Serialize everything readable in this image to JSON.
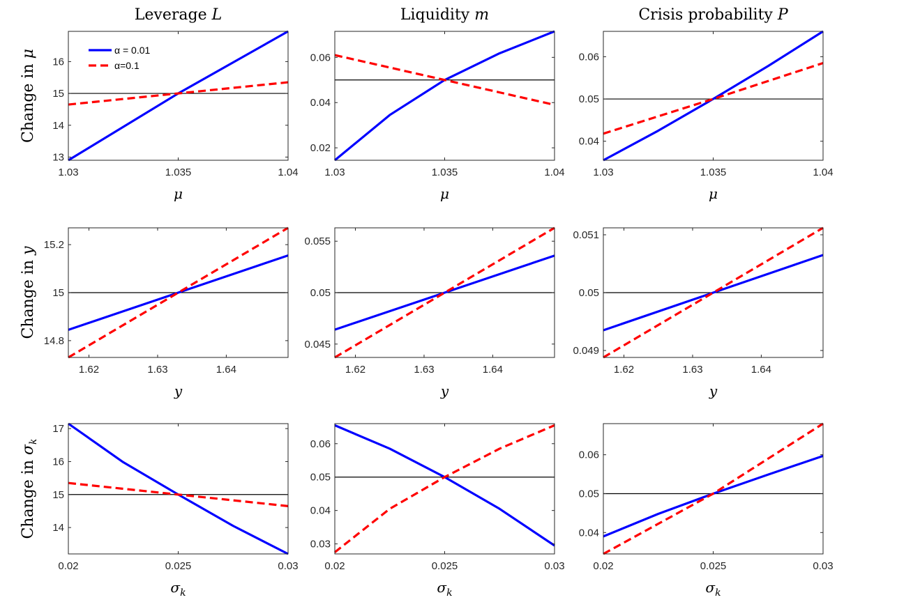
{
  "colors": {
    "alpha_001": "#0000ff",
    "alpha_01": "#ff0000",
    "baseline": "#000000",
    "axis": "#262626"
  },
  "chart_data": [
    {
      "type": "line",
      "row": 0,
      "col": 0,
      "title": "Leverage L",
      "ylabel": "Change in μ",
      "xlabel": "μ",
      "xlim": [
        1.03,
        1.04
      ],
      "ylim": [
        12.9,
        16.95
      ],
      "xticks": [
        1.03,
        1.035,
        1.04
      ],
      "xtick_labels": [
        "1.03",
        "1.035",
        "1.04"
      ],
      "yticks": [
        13,
        14,
        15,
        16
      ],
      "ytick_labels": [
        "13",
        "14",
        "15",
        "16"
      ],
      "baseline": 15,
      "legend": {
        "placement": "top-left",
        "entries": [
          "α = 0.01",
          "α=0.1"
        ]
      },
      "series": [
        {
          "name": "α = 0.01",
          "style": "solid",
          "x": [
            1.03,
            1.035,
            1.04
          ],
          "y": [
            12.9,
            15.0,
            16.95
          ]
        },
        {
          "name": "α=0.1",
          "style": "dashed",
          "x": [
            1.03,
            1.035,
            1.04
          ],
          "y": [
            14.65,
            15.0,
            15.35
          ]
        }
      ]
    },
    {
      "type": "line",
      "row": 0,
      "col": 1,
      "title": "Liquidity m",
      "ylabel": "",
      "xlabel": "μ",
      "xlim": [
        1.03,
        1.04
      ],
      "ylim": [
        0.0145,
        0.0715
      ],
      "xticks": [
        1.03,
        1.035,
        1.04
      ],
      "xtick_labels": [
        "1.03",
        "1.035",
        "1.04"
      ],
      "yticks": [
        0.02,
        0.04,
        0.06
      ],
      "ytick_labels": [
        "0.02",
        "0.04",
        "0.06"
      ],
      "baseline": 0.05,
      "series": [
        {
          "name": "α = 0.01",
          "style": "solid",
          "x": [
            1.03,
            1.0325,
            1.035,
            1.0375,
            1.04
          ],
          "y": [
            0.0145,
            0.0345,
            0.05,
            0.0618,
            0.0715
          ]
        },
        {
          "name": "α=0.1",
          "style": "dashed",
          "x": [
            1.03,
            1.035,
            1.04
          ],
          "y": [
            0.061,
            0.05,
            0.039
          ]
        }
      ]
    },
    {
      "type": "line",
      "row": 0,
      "col": 2,
      "title": "Crisis probability P",
      "ylabel": "",
      "xlabel": "μ",
      "xlim": [
        1.03,
        1.04
      ],
      "ylim": [
        0.0355,
        0.066
      ],
      "xticks": [
        1.03,
        1.035,
        1.04
      ],
      "xtick_labels": [
        "1.03",
        "1.035",
        "1.04"
      ],
      "yticks": [
        0.04,
        0.05,
        0.06
      ],
      "ytick_labels": [
        "0.04",
        "0.05",
        "0.06"
      ],
      "baseline": 0.05,
      "series": [
        {
          "name": "α = 0.01",
          "style": "solid",
          "x": [
            1.03,
            1.0325,
            1.035,
            1.0375,
            1.04
          ],
          "y": [
            0.0355,
            0.0425,
            0.05,
            0.0578,
            0.066
          ]
        },
        {
          "name": "α=0.1",
          "style": "dashed",
          "x": [
            1.03,
            1.035,
            1.04
          ],
          "y": [
            0.0418,
            0.05,
            0.0585
          ]
        }
      ]
    },
    {
      "type": "line",
      "row": 1,
      "col": 0,
      "title": "",
      "ylabel": "Change in y",
      "xlabel": "y",
      "xlim": [
        1.617,
        1.649
      ],
      "ylim": [
        14.73,
        15.27
      ],
      "xticks": [
        1.62,
        1.63,
        1.64
      ],
      "xtick_labels": [
        "1.62",
        "1.63",
        "1.64"
      ],
      "yticks": [
        14.8,
        15,
        15.2
      ],
      "ytick_labels": [
        "14.8",
        "15",
        "15.2"
      ],
      "baseline": 15,
      "series": [
        {
          "name": "α = 0.01",
          "style": "solid",
          "x": [
            1.617,
            1.633,
            1.649
          ],
          "y": [
            14.845,
            15.0,
            15.155
          ]
        },
        {
          "name": "α=0.1",
          "style": "dashed",
          "x": [
            1.617,
            1.633,
            1.649
          ],
          "y": [
            14.73,
            15.0,
            15.27
          ]
        }
      ]
    },
    {
      "type": "line",
      "row": 1,
      "col": 1,
      "title": "",
      "ylabel": "",
      "xlabel": "y",
      "xlim": [
        1.617,
        1.649
      ],
      "ylim": [
        0.0437,
        0.0563
      ],
      "xticks": [
        1.62,
        1.63,
        1.64
      ],
      "xtick_labels": [
        "1.62",
        "1.63",
        "1.64"
      ],
      "yticks": [
        0.045,
        0.05,
        0.055
      ],
      "ytick_labels": [
        "0.045",
        "0.05",
        "0.055"
      ],
      "baseline": 0.05,
      "series": [
        {
          "name": "α = 0.01",
          "style": "solid",
          "x": [
            1.617,
            1.633,
            1.649
          ],
          "y": [
            0.0464,
            0.05,
            0.0536
          ]
        },
        {
          "name": "α=0.1",
          "style": "dashed",
          "x": [
            1.617,
            1.633,
            1.649
          ],
          "y": [
            0.0437,
            0.05,
            0.0563
          ]
        }
      ]
    },
    {
      "type": "line",
      "row": 1,
      "col": 2,
      "title": "",
      "ylabel": "",
      "xlabel": "y",
      "xlim": [
        1.617,
        1.649
      ],
      "ylim": [
        0.04888,
        0.05112
      ],
      "xticks": [
        1.62,
        1.63,
        1.64
      ],
      "xtick_labels": [
        "1.62",
        "1.63",
        "1.64"
      ],
      "yticks": [
        0.049,
        0.05,
        0.051
      ],
      "ytick_labels": [
        "0.049",
        "0.05",
        "0.051"
      ],
      "baseline": 0.05,
      "series": [
        {
          "name": "α = 0.01",
          "style": "solid",
          "x": [
            1.617,
            1.633,
            1.649
          ],
          "y": [
            0.04935,
            0.05,
            0.05065
          ]
        },
        {
          "name": "α=0.1",
          "style": "dashed",
          "x": [
            1.617,
            1.633,
            1.649
          ],
          "y": [
            0.04888,
            0.05,
            0.05112
          ]
        }
      ]
    },
    {
      "type": "line",
      "row": 2,
      "col": 0,
      "title": "",
      "ylabel": "Change in σ_k",
      "xlabel": "σ_k",
      "xlim": [
        0.02,
        0.03
      ],
      "ylim": [
        13.2,
        17.15
      ],
      "xticks": [
        0.02,
        0.025,
        0.03
      ],
      "xtick_labels": [
        "0.02",
        "0.025",
        "0.03"
      ],
      "yticks": [
        14,
        15,
        16,
        17
      ],
      "ytick_labels": [
        "14",
        "15",
        "16",
        "17"
      ],
      "baseline": 15,
      "series": [
        {
          "name": "α = 0.01",
          "style": "solid",
          "x": [
            0.02,
            0.0225,
            0.025,
            0.0275,
            0.03
          ],
          "y": [
            17.15,
            15.98,
            15.0,
            14.05,
            13.2
          ]
        },
        {
          "name": "α=0.1",
          "style": "dashed",
          "x": [
            0.02,
            0.025,
            0.03
          ],
          "y": [
            15.35,
            15.0,
            14.65
          ]
        }
      ]
    },
    {
      "type": "line",
      "row": 2,
      "col": 1,
      "title": "",
      "ylabel": "",
      "xlabel": "σ_k",
      "xlim": [
        0.02,
        0.03
      ],
      "ylim": [
        0.027,
        0.066
      ],
      "xticks": [
        0.02,
        0.025,
        0.03
      ],
      "xtick_labels": [
        "0.02",
        "0.025",
        "0.03"
      ],
      "yticks": [
        0.03,
        0.04,
        0.05,
        0.06
      ],
      "ytick_labels": [
        "0.03",
        "0.04",
        "0.05",
        "0.06"
      ],
      "baseline": 0.05,
      "series": [
        {
          "name": "α = 0.01",
          "style": "solid",
          "x": [
            0.02,
            0.0225,
            0.025,
            0.0275,
            0.03
          ],
          "y": [
            0.0655,
            0.0585,
            0.05,
            0.0405,
            0.0295
          ]
        },
        {
          "name": "α=0.1",
          "style": "dashed",
          "x": [
            0.02,
            0.0225,
            0.025,
            0.0275,
            0.03
          ],
          "y": [
            0.0275,
            0.0405,
            0.05,
            0.0585,
            0.0655
          ]
        }
      ]
    },
    {
      "type": "line",
      "row": 2,
      "col": 2,
      "title": "",
      "ylabel": "",
      "xlabel": "σ_k",
      "xlim": [
        0.02,
        0.03
      ],
      "ylim": [
        0.0345,
        0.068
      ],
      "xticks": [
        0.02,
        0.025,
        0.03
      ],
      "xtick_labels": [
        "0.02",
        "0.025",
        "0.03"
      ],
      "yticks": [
        0.04,
        0.05,
        0.06
      ],
      "ytick_labels": [
        "0.04",
        "0.05",
        "0.06"
      ],
      "baseline": 0.05,
      "series": [
        {
          "name": "α = 0.01",
          "style": "solid",
          "x": [
            0.02,
            0.0225,
            0.025,
            0.0275,
            0.03
          ],
          "y": [
            0.039,
            0.0448,
            0.05,
            0.0549,
            0.0597
          ]
        },
        {
          "name": "α=0.1",
          "style": "dashed",
          "x": [
            0.02,
            0.025,
            0.03
          ],
          "y": [
            0.0345,
            0.05,
            0.068
          ]
        }
      ]
    }
  ]
}
